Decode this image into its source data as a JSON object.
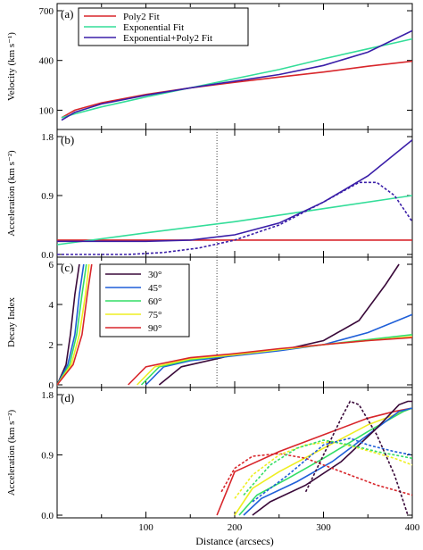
{
  "chart_data": [
    {
      "panel_label": "(a)",
      "type": "line",
      "ylabel": "Velocity (km s⁻¹)",
      "xlim": [
        0,
        400
      ],
      "ylim": [
        0,
        700
      ],
      "yticks": [
        100,
        400,
        700
      ],
      "legend": "top-left",
      "series": [
        {
          "name": "Poly2 Fit",
          "color": "#d8262b",
          "style": "solid",
          "x": [
            5,
            20,
            50,
            100,
            150,
            200,
            250,
            300,
            350,
            400
          ],
          "y": [
            55,
            100,
            145,
            195,
            235,
            268,
            300,
            330,
            365,
            395
          ]
        },
        {
          "name": "Exponential Fit",
          "color": "#33dd99",
          "style": "solid",
          "x": [
            5,
            20,
            50,
            100,
            150,
            200,
            250,
            300,
            350,
            400
          ],
          "y": [
            55,
            78,
            120,
            180,
            235,
            290,
            345,
            410,
            470,
            530
          ]
        },
        {
          "name": "Exponential+Poly2 Fit",
          "color": "#3a1ea8",
          "style": "solid",
          "x": [
            5,
            20,
            50,
            100,
            150,
            200,
            250,
            300,
            350,
            400
          ],
          "y": [
            40,
            88,
            138,
            190,
            235,
            275,
            315,
            370,
            450,
            580
          ]
        }
      ]
    },
    {
      "panel_label": "(b)",
      "type": "line",
      "ylabel": "Acceleration (km s⁻²)",
      "xlim": [
        0,
        400
      ],
      "ylim": [
        0,
        1.8
      ],
      "yticks": [
        0.0,
        0.9,
        1.8
      ],
      "vline_x": 180,
      "series": [
        {
          "color": "#d8262b",
          "style": "solid",
          "x": [
            0,
            400
          ],
          "y": [
            0.22,
            0.22
          ]
        },
        {
          "color": "#33dd99",
          "style": "solid",
          "x": [
            0,
            100,
            200,
            300,
            400
          ],
          "y": [
            0.15,
            0.33,
            0.5,
            0.7,
            0.9
          ]
        },
        {
          "color": "#3a1ea8",
          "style": "solid",
          "x": [
            0,
            100,
            150,
            200,
            250,
            300,
            350,
            400
          ],
          "y": [
            0.2,
            0.2,
            0.22,
            0.3,
            0.48,
            0.8,
            1.2,
            1.75
          ]
        },
        {
          "color": "#3a1ea8",
          "style": "dashed",
          "x": [
            0,
            80,
            120,
            160,
            200,
            250,
            300,
            340,
            360,
            380,
            400
          ],
          "y": [
            0.0,
            0.0,
            0.03,
            0.1,
            0.22,
            0.45,
            0.8,
            1.1,
            1.1,
            0.9,
            0.5
          ]
        }
      ]
    },
    {
      "panel_label": "(c)",
      "type": "line",
      "ylabel": "Decay Index",
      "xlim": [
        0,
        400
      ],
      "ylim": [
        0,
        6
      ],
      "yticks": [
        0,
        2,
        4,
        6
      ],
      "vline_x": 180,
      "legend": "top-left",
      "series": [
        {
          "name": "30°",
          "color": "#3a0a3a",
          "style": "solid",
          "segments": [
            {
              "x": [
                0,
                10,
                15,
                20,
                25
              ],
              "y": [
                0,
                1.0,
                2.5,
                4.5,
                6.0
              ]
            },
            {
              "x": [
                115,
                140,
                200,
                260,
                300,
                340,
                370,
                385
              ],
              "y": [
                0,
                0.9,
                1.5,
                1.8,
                2.2,
                3.2,
                5.0,
                6.0
              ]
            }
          ]
        },
        {
          "name": "45°",
          "color": "#1f5fd8",
          "style": "solid",
          "segments": [
            {
              "x": [
                0,
                12,
                20,
                25,
                30
              ],
              "y": [
                0,
                1.0,
                2.5,
                4.5,
                6.0
              ]
            },
            {
              "x": [
                100,
                120,
                150,
                200,
                250,
                300,
                350,
                400
              ],
              "y": [
                0,
                0.9,
                1.2,
                1.45,
                1.7,
                2.0,
                2.6,
                3.5
              ]
            }
          ]
        },
        {
          "name": "60°",
          "color": "#33dd66",
          "style": "solid",
          "segments": [
            {
              "x": [
                0,
                14,
                22,
                28,
                33
              ],
              "y": [
                0,
                1.0,
                2.5,
                4.5,
                6.0
              ]
            },
            {
              "x": [
                95,
                115,
                150,
                200,
                250,
                300,
                350,
                400
              ],
              "y": [
                0,
                0.9,
                1.25,
                1.5,
                1.75,
                2.0,
                2.25,
                2.5
              ]
            }
          ]
        },
        {
          "name": "75°",
          "color": "#eeee22",
          "style": "solid",
          "segments": [
            {
              "x": [
                0,
                16,
                25,
                32,
                36
              ],
              "y": [
                0,
                1.0,
                2.5,
                4.5,
                6.0
              ]
            },
            {
              "x": [
                90,
                110,
                150,
                200,
                250,
                300,
                350,
                400
              ],
              "y": [
                0,
                0.9,
                1.3,
                1.5,
                1.75,
                2.0,
                2.2,
                2.4
              ]
            }
          ]
        },
        {
          "name": "90°",
          "color": "#d8262b",
          "style": "solid",
          "segments": [
            {
              "x": [
                0,
                18,
                28,
                34,
                39
              ],
              "y": [
                0,
                1.0,
                2.5,
                4.5,
                6.0
              ]
            },
            {
              "x": [
                80,
                100,
                150,
                200,
                250,
                300,
                350,
                400
              ],
              "y": [
                0,
                0.9,
                1.35,
                1.55,
                1.8,
                2.0,
                2.2,
                2.35
              ]
            }
          ]
        }
      ]
    },
    {
      "panel_label": "(d)",
      "type": "line",
      "ylabel": "Acceleration (km s⁻²)",
      "xlabel": "Distance (arcsecs)",
      "xlim": [
        0,
        400
      ],
      "ylim": [
        0,
        1.8
      ],
      "yticks": [
        0.0,
        0.9,
        1.8
      ],
      "xticks": [
        100,
        200,
        300,
        400
      ],
      "series": [
        {
          "color": "#d8262b",
          "style": "solid",
          "x": [
            180,
            200,
            250,
            300,
            350,
            380,
            400
          ],
          "y": [
            0.0,
            0.65,
            0.95,
            1.2,
            1.45,
            1.55,
            1.6
          ]
        },
        {
          "color": "#eeee22",
          "style": "solid",
          "x": [
            200,
            220,
            250,
            300,
            350,
            390,
            400
          ],
          "y": [
            0.0,
            0.4,
            0.65,
            1.0,
            1.35,
            1.55,
            1.6
          ]
        },
        {
          "color": "#33dd66",
          "style": "solid",
          "x": [
            205,
            225,
            260,
            300,
            350,
            390,
            400
          ],
          "y": [
            0.0,
            0.3,
            0.55,
            0.85,
            1.25,
            1.55,
            1.6
          ]
        },
        {
          "color": "#1f5fd8",
          "style": "solid",
          "x": [
            210,
            230,
            270,
            310,
            350,
            385,
            400
          ],
          "y": [
            0.0,
            0.25,
            0.5,
            0.8,
            1.2,
            1.55,
            1.6
          ]
        },
        {
          "color": "#3a0a3a",
          "style": "solid",
          "x": [
            220,
            240,
            280,
            320,
            360,
            385,
            395,
            400
          ],
          "y": [
            0.0,
            0.2,
            0.45,
            0.8,
            1.3,
            1.65,
            1.7,
            1.7
          ]
        },
        {
          "color": "#d8262b",
          "style": "dashed",
          "x": [
            185,
            200,
            220,
            250,
            280,
            320,
            360,
            400
          ],
          "y": [
            0.35,
            0.7,
            0.88,
            0.92,
            0.85,
            0.65,
            0.45,
            0.3
          ]
        },
        {
          "color": "#eeee22",
          "style": "dashed",
          "x": [
            200,
            220,
            250,
            280,
            310,
            340,
            380,
            400
          ],
          "y": [
            0.25,
            0.6,
            0.9,
            1.05,
            1.1,
            1.0,
            0.85,
            0.75
          ]
        },
        {
          "color": "#33dd66",
          "style": "dashed",
          "x": [
            210,
            240,
            270,
            300,
            330,
            360,
            400
          ],
          "y": [
            0.3,
            0.75,
            1.0,
            1.12,
            1.05,
            0.95,
            0.85
          ]
        },
        {
          "color": "#1f5fd8",
          "style": "dashed",
          "x": [
            220,
            260,
            300,
            330,
            350,
            380,
            400
          ],
          "y": [
            0.2,
            0.6,
            1.05,
            1.15,
            1.05,
            0.95,
            0.9
          ]
        },
        {
          "color": "#3a0a3a",
          "style": "dashed",
          "x": [
            280,
            300,
            320,
            330,
            340,
            360,
            380,
            390,
            395
          ],
          "y": [
            0.35,
            0.9,
            1.45,
            1.7,
            1.65,
            1.2,
            0.6,
            0.2,
            0.0
          ]
        }
      ]
    }
  ]
}
